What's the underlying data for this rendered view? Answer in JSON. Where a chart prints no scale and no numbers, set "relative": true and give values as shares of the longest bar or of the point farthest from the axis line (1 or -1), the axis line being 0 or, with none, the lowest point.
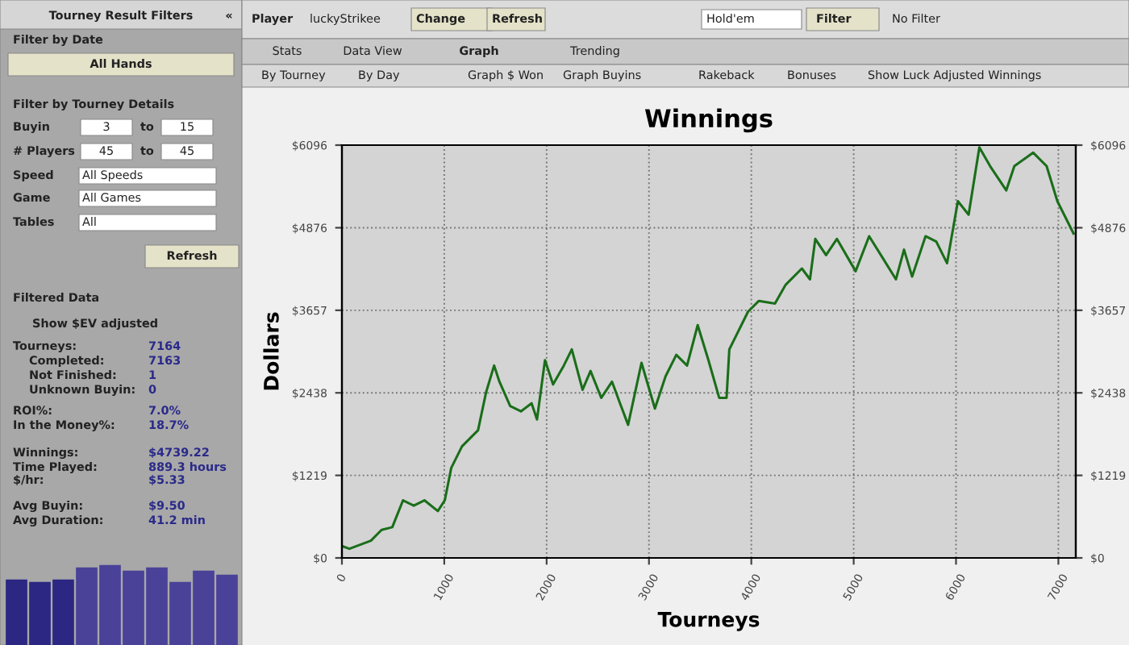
{
  "chart_data": [
    {
      "type": "other",
      "annotations": [
        "Tourney Result Filters",
        "«",
        "Filter by Date",
        "All Hands",
        "Filter by Tourney Details",
        "Buyin",
        "3",
        "to",
        "15",
        "# Players",
        "45",
        "to",
        "45",
        "Speed",
        "All Speeds",
        "Game",
        "All Games",
        "Tables",
        "All",
        "Refresh",
        "Filtered Data",
        "Show $EV adjusted",
        "Tourneys:",
        "7164",
        "Completed:",
        "7163",
        "Not Finished:",
        "1",
        "Unknown Buyin:",
        "0",
        "ROI%:",
        "7.0%",
        "In the Money%:",
        "18.7%",
        "Winnings:",
        "$4739.22",
        "Time Played:",
        "889.3 hours",
        "$/hr:",
        "$5.33",
        "Avg Buyin:",
        "$9.50",
        "Avg Duration:",
        "41.2 min",
        "Player",
        "luckyStrikee",
        "Change",
        "Refresh",
        "Hold'em",
        "Filter",
        "No Filter",
        "Stats",
        "Data View",
        "Graph",
        "Trending",
        "By Tourney",
        "By Day",
        "Graph $ Won",
        "Graph Buyins",
        "Rakeback",
        "Bonuses",
        "Show Luck Adjusted Winnings"
      ]
    },
    {
      "type": "bar",
      "relative": true,
      "categories": [
        null,
        null,
        null,
        null,
        null,
        null,
        null,
        null,
        null,
        null
      ],
      "values": [
        0.82,
        0.79,
        0.82,
        0.97,
        1,
        0.93,
        0.97,
        0.79,
        0.93,
        0.88
      ],
      "colors": [
        "#2b2782",
        "#2b2782",
        "#2b2782",
        "#4a4298",
        "#4a4298",
        "#4a4298",
        "#4a4298",
        "#4a4298",
        "#4a4298",
        "#4a4298"
      ]
    },
    {
      "type": "line",
      "title": "Winnings",
      "xlabel": "Tourneys",
      "ylabel": "Dollars",
      "grid": true,
      "legend": false,
      "line_style": "solid",
      "marker": "none",
      "xlim": [
        0,
        7170
      ],
      "xticks": [
        0,
        1000,
        2000,
        3000,
        4000,
        5000,
        6000,
        7000
      ],
      "ylim": [
        0,
        6096
      ],
      "yticks": [
        {
          "value": 0,
          "label": "$0"
        },
        {
          "value": 1219,
          "label": "$1219"
        },
        {
          "value": 2438,
          "label": "$2438"
        },
        {
          "value": 3657,
          "label": "$3657"
        },
        {
          "value": 4876,
          "label": "$4876"
        },
        {
          "value": 6096,
          "label": "$6096"
        }
      ],
      "y2lim": [
        0,
        6096
      ],
      "y2ticks": [
        {
          "value": 0,
          "label": "$0"
        },
        {
          "value": 1219,
          "label": "$1219"
        },
        {
          "value": 2438,
          "label": "$2438"
        },
        {
          "value": 3657,
          "label": "$3657"
        },
        {
          "value": 4876,
          "label": "$4876"
        },
        {
          "value": 6096,
          "label": "$6096"
        }
      ],
      "series": [
        {
          "color": "#1a6e1a",
          "x": [
            0,
            73,
            283,
            387,
            492,
            597,
            702,
            806,
            937,
            1005,
            1068,
            1173,
            1330,
            1408,
            1487,
            1539,
            1644,
            1749,
            1853,
            1906,
            1984,
            2063,
            2168,
            2246,
            2351,
            2429,
            2534,
            2639,
            2717,
            2796,
            2927,
            3058,
            3162,
            3267,
            3372,
            3476,
            3581,
            3686,
            3758,
            3785,
            3968,
            4074,
            4231,
            4336,
            4494,
            4573,
            4625,
            4730,
            4836,
            5019,
            5151,
            5282,
            5413,
            5492,
            5571,
            5702,
            5807,
            5912,
            6018,
            6123,
            6228,
            6333,
            6491,
            6570,
            6754,
            6885,
            6990,
            7148
          ],
          "values": [
            175,
            135,
            255,
            414,
            454,
            851,
            772,
            851,
            692,
            851,
            1329,
            1647,
            1886,
            2443,
            2841,
            2602,
            2244,
            2165,
            2284,
            2045,
            2920,
            2562,
            2841,
            3080,
            2483,
            2761,
            2364,
            2602,
            2284,
            1966,
            2881,
            2205,
            2682,
            2999,
            2841,
            3438,
            2920,
            2364,
            2364,
            3080,
            3637,
            3796,
            3756,
            4035,
            4274,
            4114,
            4711,
            4472,
            4711,
            4234,
            4751,
            4433,
            4114,
            4552,
            4154,
            4751,
            4671,
            4353,
            5268,
            5069,
            6064,
            5786,
            5428,
            5786,
            5985,
            5786,
            5268,
            4791
          ]
        }
      ]
    }
  ]
}
